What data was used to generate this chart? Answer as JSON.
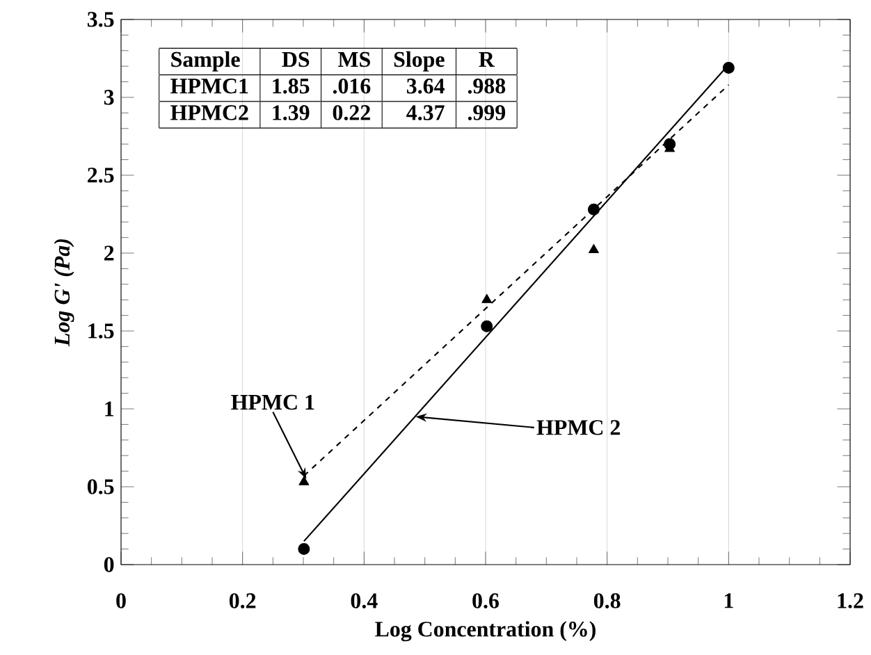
{
  "chart_data": {
    "type": "scatter",
    "xlabel": "Log  Concentration  (%)",
    "ylabel": "Log G' (Pa)",
    "xlim": [
      0,
      1.2
    ],
    "ylim": [
      0,
      3.5
    ],
    "xticks": [
      0,
      0.2,
      0.4,
      0.6,
      0.8,
      1,
      1.2
    ],
    "yticks": [
      0,
      0.5,
      1,
      1.5,
      2,
      2.5,
      3,
      3.5
    ],
    "grid": "x",
    "series": [
      {
        "marker": "triangle",
        "color": "#000000",
        "x": [
          0.301,
          0.602,
          0.778,
          0.903
        ],
        "values": [
          0.53,
          1.7,
          2.02,
          2.67
        ]
      },
      {
        "marker": "circle",
        "color": "#000000",
        "x": [
          0.301,
          0.602,
          0.778,
          0.903,
          1.0
        ],
        "values": [
          0.1,
          1.53,
          2.28,
          2.7,
          3.19
        ]
      },
      {
        "type": "line",
        "line_style": "dashed",
        "color": "#000000",
        "x": [
          0.301,
          1.0
        ],
        "values": [
          0.57,
          3.08
        ]
      },
      {
        "type": "line",
        "line_style": "solid",
        "color": "#000000",
        "x": [
          0.301,
          1.0
        ],
        "values": [
          0.15,
          3.21
        ]
      }
    ],
    "annotations": [
      "Sample",
      "DS",
      "MS",
      "Slope",
      "R",
      "HPMC1",
      "1.85",
      ".016",
      "3.64",
      ".988",
      "HPMC2",
      "1.39",
      "0.22",
      "4.37",
      ".999",
      {
        "text": "HPMC 1",
        "x": 0.3,
        "y": 0.53
      },
      {
        "text": "HPMC 2",
        "x": 0.48,
        "y": 0.93
      }
    ]
  }
}
